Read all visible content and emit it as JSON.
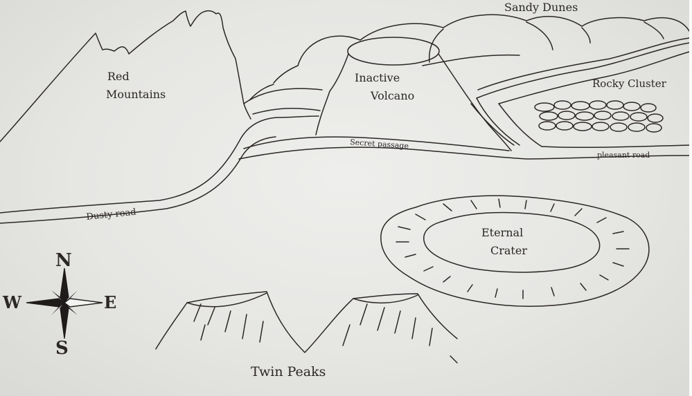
{
  "map": {
    "labels": {
      "sandy_dunes": "Sandy Dunes",
      "red_mountains_1": "Red",
      "red_mountains_2": "Mountains",
      "inactive_volcano_1": "Inactive",
      "inactive_volcano_2": "Volcano",
      "rocky_cluster": "Rocky Cluster",
      "secret_passage": "Secret passage",
      "pleasant_road": "pleasant road",
      "dusty_road": "Dusty road",
      "eternal_crater_1": "Eternal",
      "eternal_crater_2": "Crater",
      "twin_peaks": "Twin Peaks"
    },
    "compass": {
      "north": "N",
      "south": "S",
      "east": "E",
      "west": "W"
    }
  }
}
